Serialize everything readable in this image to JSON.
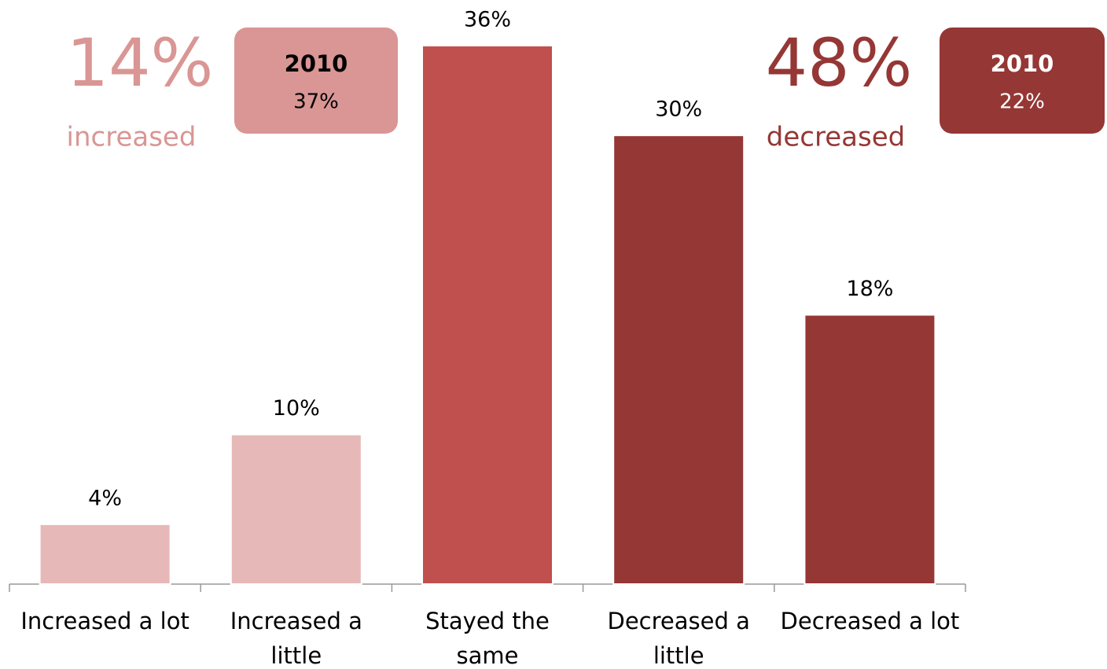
{
  "chart_data": {
    "type": "bar",
    "categories": [
      [
        "Increased a lot"
      ],
      [
        "Increased a",
        "little"
      ],
      [
        "Stayed the",
        "same"
      ],
      [
        "Decreased a",
        "little"
      ],
      [
        "Decreased a lot"
      ]
    ],
    "values": [
      4,
      10,
      36,
      30,
      18
    ],
    "value_labels": [
      "4%",
      "10%",
      "36%",
      "30%",
      "18%"
    ],
    "colors": [
      "#e6b8b7",
      "#e6b8b7",
      "#c0504d",
      "#953735",
      "#953735"
    ],
    "annotations": [
      {
        "value": "14%",
        "label": "increased",
        "box_title": "2010",
        "box_value": "37%",
        "color": "#d99694"
      },
      {
        "value": "48%",
        "label": "decreased",
        "box_title": "2010",
        "box_value": "22%",
        "color": "#953735"
      }
    ]
  }
}
